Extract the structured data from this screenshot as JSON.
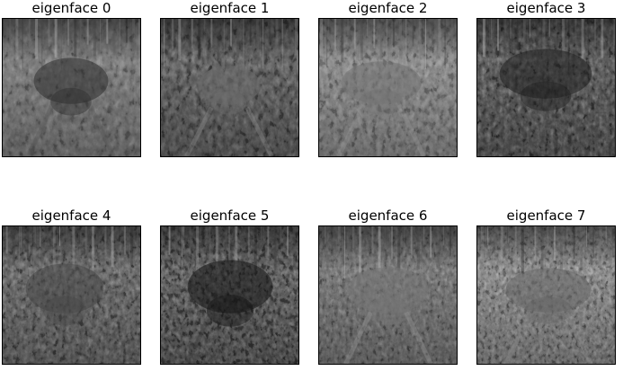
{
  "figure": {
    "panels": [
      {
        "title": "eigenface 0",
        "index": 0
      },
      {
        "title": "eigenface 1",
        "index": 1
      },
      {
        "title": "eigenface 2",
        "index": 2
      },
      {
        "title": "eigenface 3",
        "index": 3
      },
      {
        "title": "eigenface 4",
        "index": 4
      },
      {
        "title": "eigenface 5",
        "index": 5
      },
      {
        "title": "eigenface 6",
        "index": 6
      },
      {
        "title": "eigenface 7",
        "index": 7
      }
    ]
  }
}
